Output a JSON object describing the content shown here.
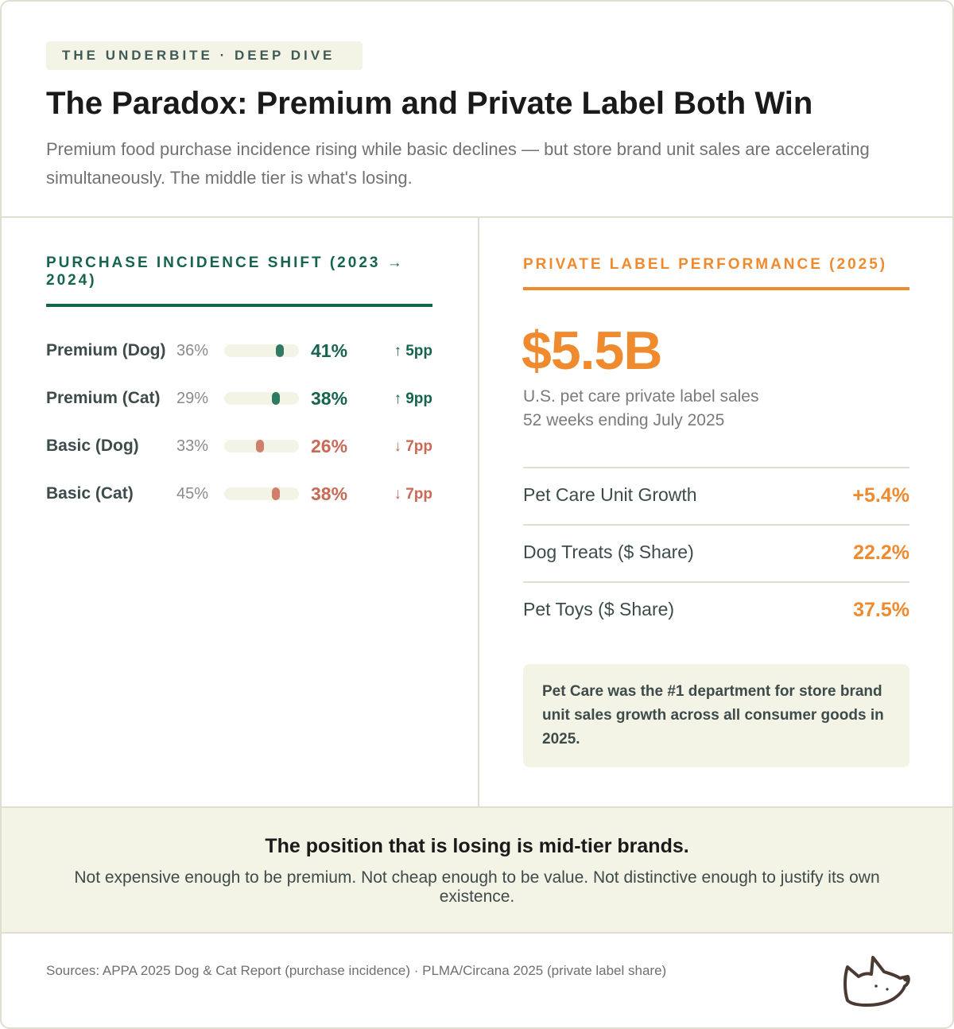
{
  "header": {
    "tag": "THE UNDERBITE · DEEP DIVE",
    "title": "The Paradox: Premium and Private Label Both Win",
    "subtitle": "Premium food purchase incidence rising while basic declines — but store brand unit sales are accelerating simultaneously. The middle tier is what's losing."
  },
  "purchase_incidence": {
    "heading": "PURCHASE INCIDENCE SHIFT (2023 → 2024)",
    "rows": [
      {
        "category": "Premium (Dog)",
        "from": "36%",
        "to": "41%",
        "change": "↑ 5pp",
        "direction": "up",
        "level": 0.41
      },
      {
        "category": "Premium (Cat)",
        "from": "29%",
        "to": "38%",
        "change": "↑ 9pp",
        "direction": "up",
        "level": 0.38
      },
      {
        "category": "Basic (Dog)",
        "from": "33%",
        "to": "26%",
        "change": "↓ 7pp",
        "direction": "down",
        "level": 0.26
      },
      {
        "category": "Basic (Cat)",
        "from": "45%",
        "to": "38%",
        "change": "↓ 7pp",
        "direction": "down",
        "level": 0.38
      }
    ],
    "colors": {
      "up": "#16644f",
      "down": "#c86a56"
    }
  },
  "private_label": {
    "heading": "PRIVATE LABEL PERFORMANCE (2025)",
    "big_number": "$5.5B",
    "desc_line1": "U.S. pet care private label sales",
    "desc_line2": "52 weeks ending July 2025",
    "stats": [
      {
        "label": "Pet Care Unit Growth",
        "value": "+5.4%"
      },
      {
        "label": "Dog Treats ($ Share)",
        "value": "22.2%"
      },
      {
        "label": "Pet Toys ($ Share)",
        "value": "37.5%"
      }
    ],
    "note": "Pet Care was the #1 department for store brand unit sales growth across all consumer goods in 2025.",
    "accent": "#ef8a2e"
  },
  "banner": {
    "title": "The position that is losing is mid-tier brands.",
    "text": "Not expensive enough to be premium. Not cheap enough to be value. Not distinctive enough to justify its own existence."
  },
  "footer": {
    "sources": "Sources: APPA 2025 Dog & Cat Report (purchase incidence) · PLMA/Circana 2025 (private label share)",
    "logo_icon": "dog-head-icon"
  }
}
